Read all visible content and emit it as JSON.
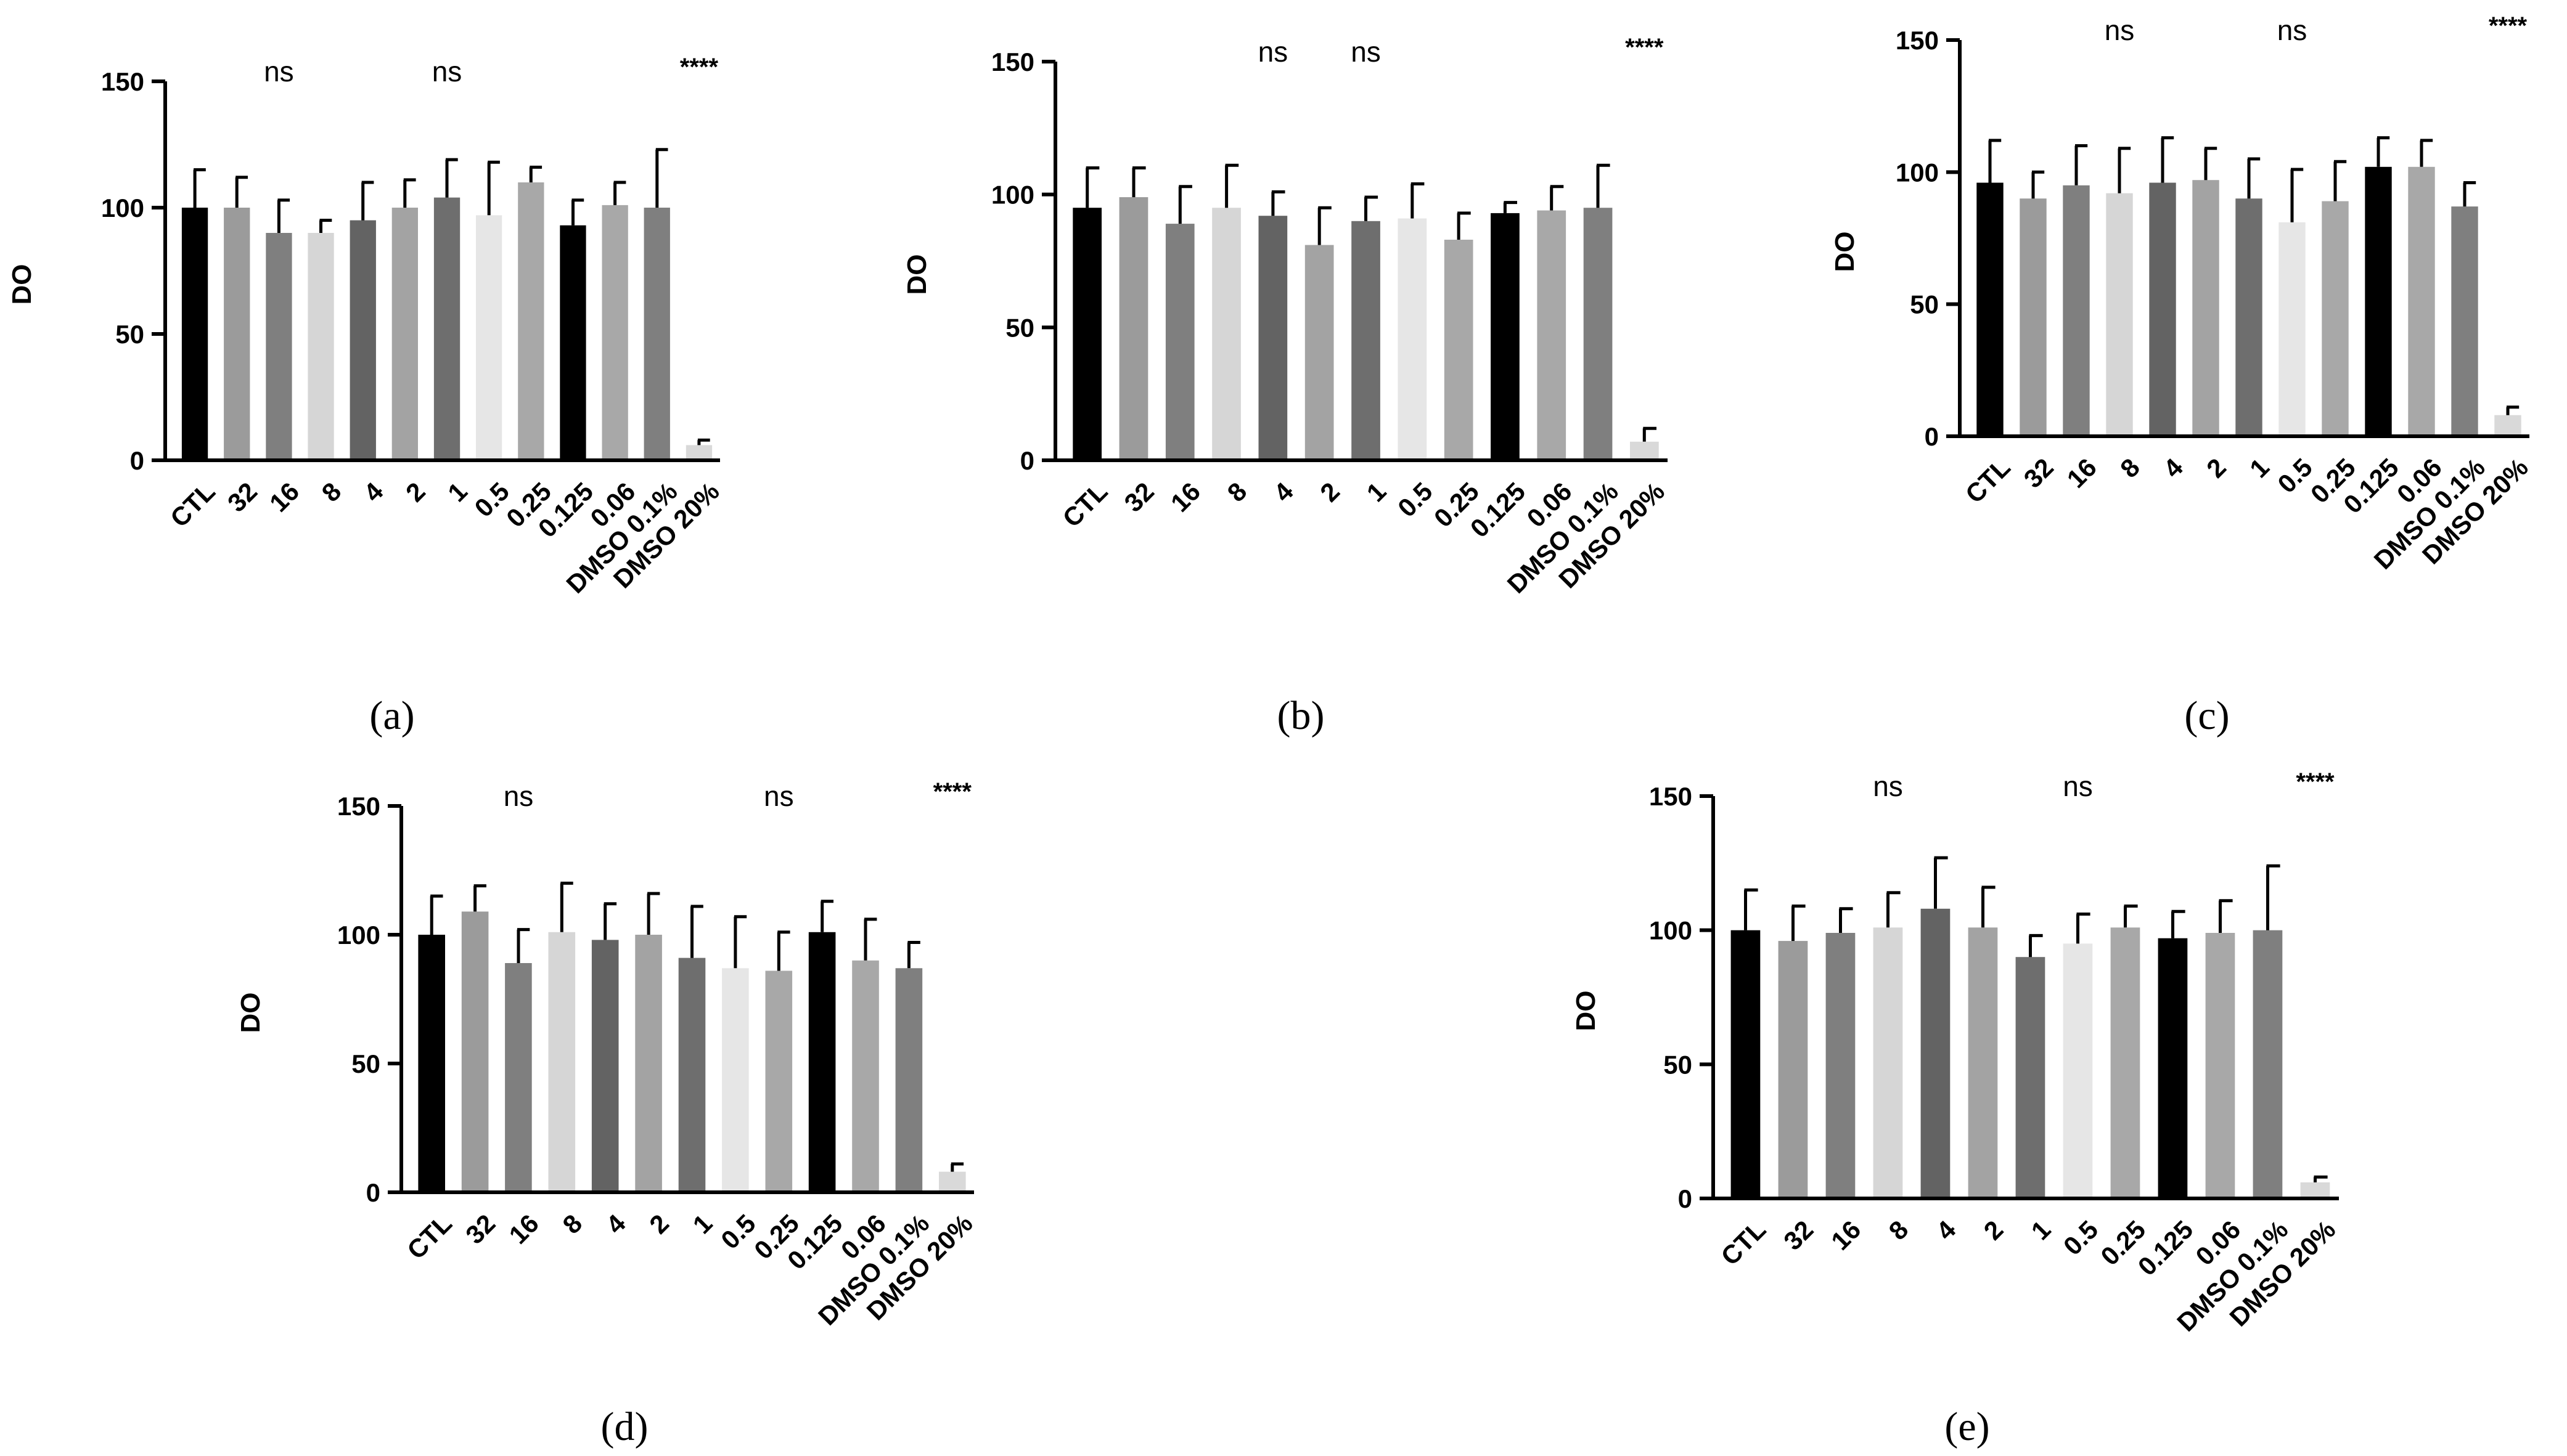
{
  "figure": {
    "categories": [
      "CTL",
      "32",
      "16",
      "8",
      "4",
      "2",
      "1",
      "0.5",
      "0.25",
      "0.125",
      "0.06",
      "DMSO 0.1%",
      "DMSO 20%"
    ],
    "bar_colors": [
      "#000000",
      "#9b9b9b",
      "#7f7f7f",
      "#d6d6d6",
      "#636363",
      "#a3a3a3",
      "#6e6e6e",
      "#e6e6e6",
      "#a8a8a8",
      "#000000",
      "#a8a8a8",
      "#7f7f7f",
      "#d9d9d9"
    ],
    "ylabel": "DO",
    "y_ticks": [
      "0",
      "50",
      "100",
      "150"
    ],
    "ylim": [
      0,
      150
    ]
  },
  "chart_data": [
    {
      "id": "a",
      "label": "(a)",
      "type": "bar",
      "ylabel": "DO",
      "ylim": [
        0,
        150
      ],
      "categories": [
        "CTL",
        "32",
        "16",
        "8",
        "4",
        "2",
        "1",
        "0.5",
        "0.25",
        "0.125",
        "0.06",
        "DMSO 0.1%",
        "DMSO 20%"
      ],
      "values": [
        100,
        100,
        90,
        90,
        95,
        100,
        104,
        97,
        110,
        93,
        101,
        100,
        6
      ],
      "errors": [
        15,
        12,
        13,
        5,
        15,
        11,
        15,
        21,
        6,
        10,
        9,
        23,
        2
      ],
      "annotations": [
        {
          "text": "ns",
          "over_category": "16"
        },
        {
          "text": "ns",
          "over_category": "1"
        },
        {
          "text": "****",
          "over_category": "DMSO 20%"
        }
      ]
    },
    {
      "id": "b",
      "label": "(b)",
      "type": "bar",
      "ylabel": "DO",
      "ylim": [
        0,
        150
      ],
      "categories": [
        "CTL",
        "32",
        "16",
        "8",
        "4",
        "2",
        "1",
        "0.5",
        "0.25",
        "0.125",
        "0.06",
        "DMSO 0.1%",
        "DMSO 20%"
      ],
      "values": [
        95,
        99,
        89,
        95,
        92,
        81,
        90,
        91,
        83,
        93,
        94,
        95,
        7
      ],
      "errors": [
        15,
        11,
        14,
        16,
        9,
        14,
        9,
        13,
        10,
        4,
        9,
        16,
        5
      ],
      "annotations": [
        {
          "text": "ns",
          "over_category": "4"
        },
        {
          "text": "ns",
          "over_category": "1"
        },
        {
          "text": "****",
          "over_category": "DMSO 20%"
        }
      ]
    },
    {
      "id": "c",
      "label": "(c)",
      "type": "bar",
      "ylabel": "DO",
      "ylim": [
        0,
        150
      ],
      "categories": [
        "CTL",
        "32",
        "16",
        "8",
        "4",
        "2",
        "1",
        "0.5",
        "0.25",
        "0.125",
        "0.06",
        "DMSO 0.1%",
        "DMSO 20%"
      ],
      "values": [
        96,
        90,
        95,
        92,
        96,
        97,
        90,
        81,
        89,
        102,
        102,
        87,
        8
      ],
      "errors": [
        16,
        10,
        15,
        17,
        17,
        12,
        15,
        20,
        15,
        11,
        10,
        9,
        3
      ],
      "annotations": [
        {
          "text": "ns",
          "over_category": "8"
        },
        {
          "text": "ns",
          "over_category": "0.5"
        },
        {
          "text": "****",
          "over_category": "DMSO 20%"
        }
      ]
    },
    {
      "id": "d",
      "label": "(d)",
      "type": "bar",
      "ylabel": "DO",
      "ylim": [
        0,
        150
      ],
      "categories": [
        "CTL",
        "32",
        "16",
        "8",
        "4",
        "2",
        "1",
        "0.5",
        "0.25",
        "0.125",
        "0.06",
        "DMSO 0.1%",
        "DMSO 20%"
      ],
      "values": [
        100,
        109,
        89,
        101,
        98,
        100,
        91,
        87,
        86,
        101,
        90,
        87,
        8
      ],
      "errors": [
        15,
        10,
        13,
        19,
        14,
        16,
        20,
        20,
        15,
        12,
        16,
        10,
        3
      ],
      "annotations": [
        {
          "text": "ns",
          "over_category": "16"
        },
        {
          "text": "ns",
          "over_category": "0.25"
        },
        {
          "text": "****",
          "over_category": "DMSO 20%"
        }
      ]
    },
    {
      "id": "e",
      "label": "(e)",
      "type": "bar",
      "ylabel": "DO",
      "ylim": [
        0,
        150
      ],
      "categories": [
        "CTL",
        "32",
        "16",
        "8",
        "4",
        "2",
        "1",
        "0.5",
        "0.25",
        "0.125",
        "0.06",
        "DMSO 0.1%",
        "DMSO 20%"
      ],
      "values": [
        100,
        96,
        99,
        101,
        108,
        101,
        90,
        95,
        101,
        97,
        99,
        100,
        6
      ],
      "errors": [
        15,
        13,
        9,
        13,
        19,
        15,
        8,
        11,
        8,
        10,
        12,
        24,
        2
      ],
      "annotations": [
        {
          "text": "ns",
          "over_category": "8"
        },
        {
          "text": "ns",
          "over_category": "0.5"
        },
        {
          "text": "****",
          "over_category": "DMSO 20%"
        }
      ]
    }
  ]
}
